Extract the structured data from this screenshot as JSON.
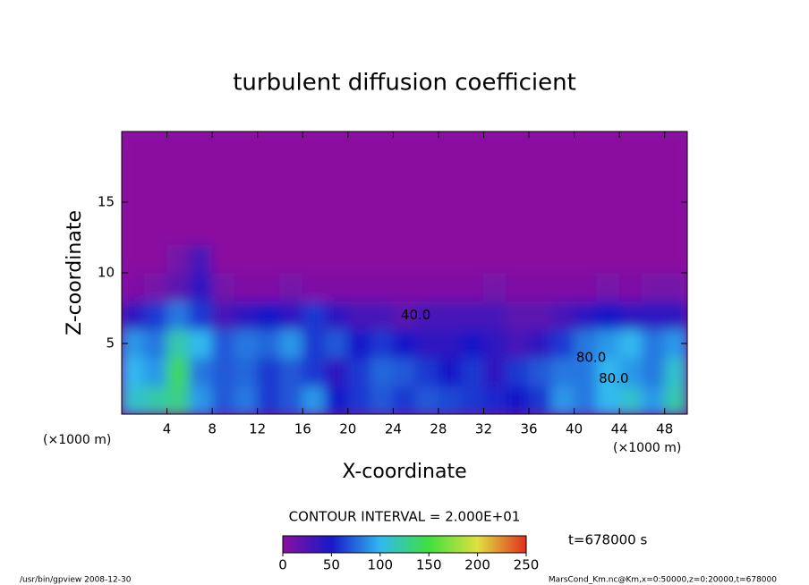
{
  "chart_data": {
    "type": "heatmap",
    "title": "turbulent diffusion coefficient",
    "xlabel": "X-coordinate",
    "ylabel": "Z-coordinate",
    "xunit": "(×1000 m)",
    "yunit": "(×1000 m)",
    "x": [
      1,
      3,
      5,
      7,
      9,
      11,
      13,
      15,
      17,
      19,
      21,
      23,
      25,
      27,
      29,
      31,
      33,
      35,
      37,
      39,
      41,
      43,
      45,
      47,
      49
    ],
    "y": [
      1,
      3,
      5,
      7,
      9,
      11,
      13,
      15,
      17,
      19
    ],
    "z": [
      [
        110,
        120,
        130,
        90,
        70,
        80,
        60,
        70,
        90,
        50,
        60,
        70,
        60,
        70,
        65,
        60,
        55,
        50,
        60,
        90,
        80,
        100,
        110,
        90,
        120
      ],
      [
        100,
        90,
        140,
        80,
        70,
        75,
        60,
        70,
        60,
        40,
        60,
        75,
        70,
        60,
        50,
        60,
        40,
        60,
        70,
        80,
        80,
        100,
        90,
        80,
        110
      ],
      [
        90,
        80,
        120,
        100,
        70,
        80,
        75,
        90,
        60,
        70,
        50,
        60,
        50,
        40,
        40,
        50,
        40,
        30,
        40,
        60,
        80,
        90,
        100,
        80,
        90
      ],
      [
        40,
        60,
        80,
        60,
        30,
        40,
        50,
        40,
        60,
        40,
        30,
        30,
        20,
        30,
        30,
        30,
        30,
        20,
        20,
        30,
        40,
        50,
        40,
        40,
        40
      ],
      [
        5,
        10,
        20,
        40,
        10,
        5,
        5,
        10,
        5,
        5,
        5,
        5,
        5,
        5,
        5,
        5,
        10,
        5,
        5,
        5,
        5,
        10,
        5,
        10,
        10
      ],
      [
        0,
        0,
        10,
        30,
        0,
        0,
        0,
        0,
        0,
        0,
        0,
        0,
        0,
        0,
        0,
        0,
        0,
        0,
        0,
        0,
        0,
        0,
        0,
        0,
        0
      ],
      [
        0,
        0,
        0,
        0,
        0,
        0,
        0,
        0,
        0,
        0,
        0,
        0,
        0,
        0,
        0,
        0,
        0,
        0,
        0,
        0,
        0,
        0,
        0,
        0,
        0
      ],
      [
        0,
        0,
        0,
        0,
        0,
        0,
        0,
        0,
        0,
        0,
        0,
        0,
        0,
        0,
        0,
        0,
        0,
        0,
        0,
        0,
        0,
        0,
        0,
        0,
        0
      ],
      [
        0,
        0,
        0,
        0,
        0,
        0,
        0,
        0,
        0,
        0,
        0,
        0,
        0,
        0,
        0,
        0,
        0,
        0,
        0,
        0,
        0,
        0,
        0,
        0,
        0
      ],
      [
        0,
        0,
        0,
        0,
        0,
        0,
        0,
        0,
        0,
        0,
        0,
        0,
        0,
        0,
        0,
        0,
        0,
        0,
        0,
        0,
        0,
        0,
        0,
        0,
        0
      ]
    ],
    "xlim": [
      0,
      50
    ],
    "ylim": [
      0,
      20
    ],
    "xticks": [
      4,
      8,
      12,
      16,
      20,
      24,
      28,
      32,
      36,
      40,
      44,
      48
    ],
    "yticks": [
      5,
      10,
      15
    ],
    "colormap": [
      "#8a10a0",
      "#1818c8",
      "#30b8f0",
      "#40e040",
      "#e0e040",
      "#e03020"
    ],
    "clim": [
      0,
      250
    ],
    "cticks": [
      0,
      50,
      100,
      150,
      200,
      250
    ],
    "contour_labels": [
      {
        "value": 40,
        "label": "40.0",
        "x": 26,
        "z": 7
      },
      {
        "value": 80,
        "label": "80.0",
        "x": 41.5,
        "z": 4
      },
      {
        "value": 80,
        "label": "80.0",
        "x": 43.5,
        "z": 2.5
      }
    ],
    "contour_interval": "CONTOUR INTERVAL = 2.000E+01",
    "time_label": "t=678000 s",
    "footer_left": "/usr/bin/gpview   2008-12-30",
    "footer_right": "MarsCond_Km.nc@Km,x=0:50000,z=0:20000,t=678000"
  }
}
